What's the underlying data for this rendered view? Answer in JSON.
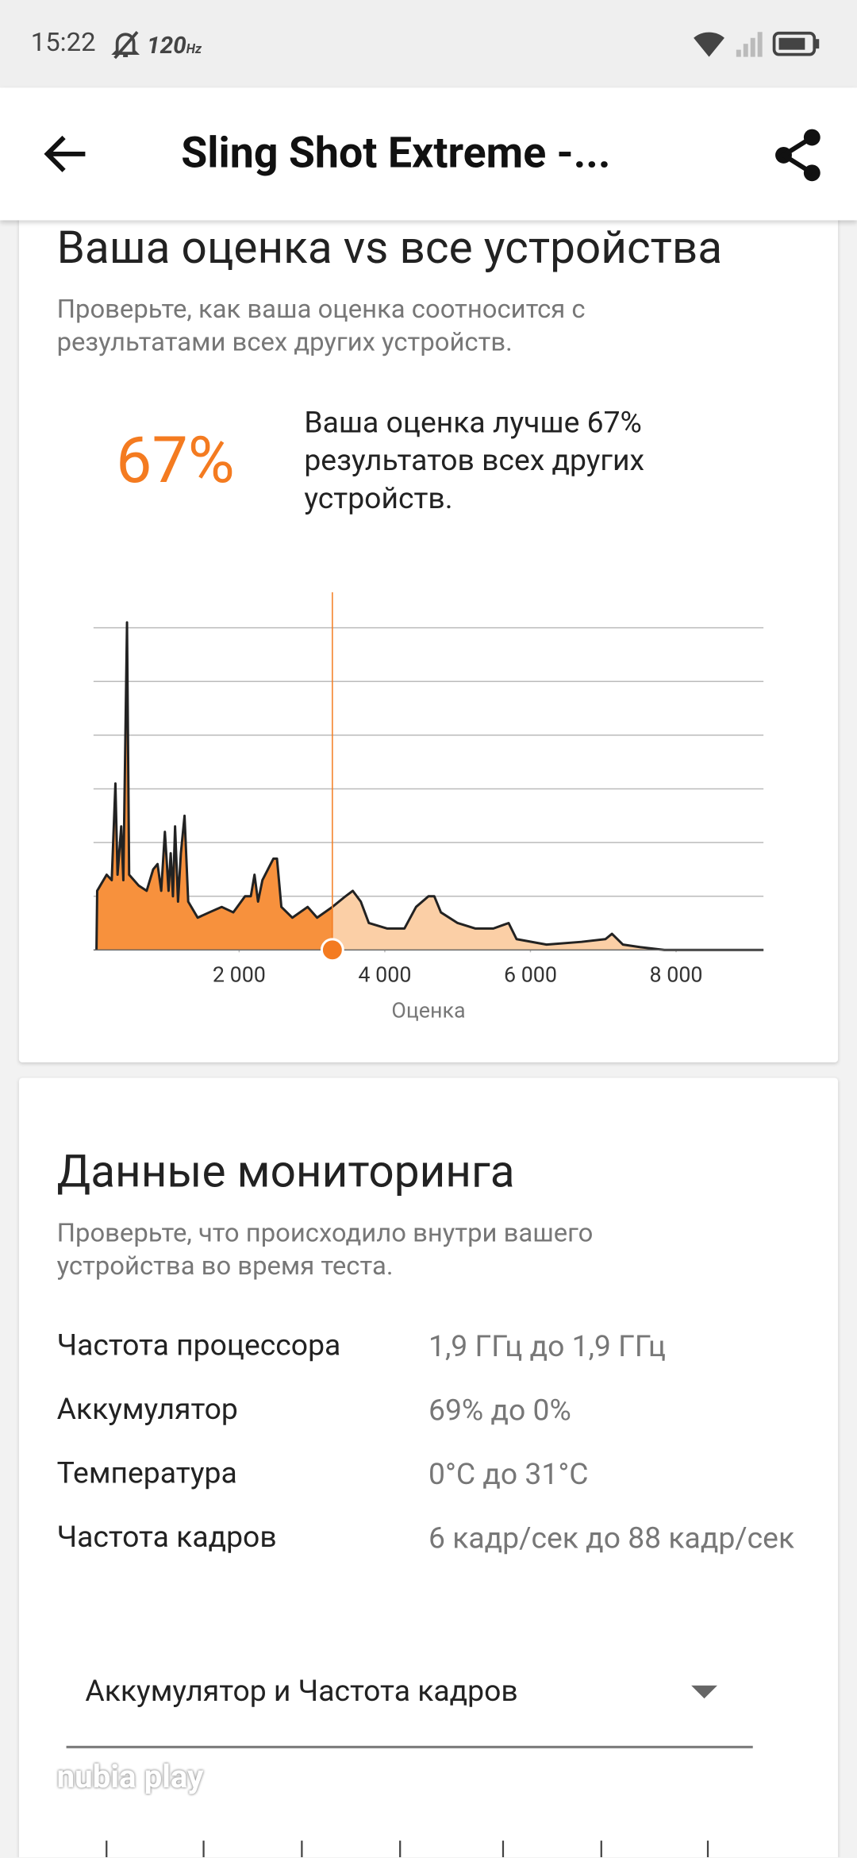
{
  "status_bar": {
    "time": "15:22",
    "refresh": "120",
    "refresh_unit": "Hz"
  },
  "header": {
    "title": "Sling Shot Extreme -..."
  },
  "comparison": {
    "title": "Ваша оценка vs все устройства",
    "subtitle": "Проверьте, как ваша оценка соотносится с результатами всех других устройств.",
    "percent": "67%",
    "summary": "Ваша оценка лучше 67% результатов всех других устройств."
  },
  "chart_data": {
    "type": "area",
    "xlabel": "Оценка",
    "x": [
      40,
      50,
      180,
      250,
      300,
      330,
      380,
      410,
      460,
      490,
      620,
      730,
      820,
      880,
      930,
      980,
      1030,
      1060,
      1090,
      1120,
      1160,
      1200,
      1250,
      1300,
      1430,
      1590,
      1760,
      1920,
      2080,
      2160,
      2210,
      2260,
      2320,
      2470,
      2520,
      2580,
      2730,
      2940,
      3070,
      3280,
      3460,
      3560,
      3670,
      3780,
      4030,
      4270,
      4430,
      4600,
      4680,
      4770,
      5000,
      5240,
      5490,
      5700,
      5810,
      6220,
      6700,
      7030,
      7120,
      7270,
      7510,
      7840,
      9200
    ],
    "values": [
      0,
      1.1,
      1.4,
      1.3,
      3.1,
      1.4,
      2.3,
      1.3,
      6.1,
      1.4,
      1.2,
      1.1,
      1.5,
      1.6,
      1.1,
      2.2,
      1.1,
      1.8,
      1.0,
      2.3,
      0.9,
      1.8,
      2.5,
      0.9,
      0.6,
      0.7,
      0.8,
      0.7,
      1.0,
      1.0,
      1.4,
      0.9,
      1.3,
      1.7,
      1.7,
      0.8,
      0.6,
      0.8,
      0.6,
      0.8,
      1.0,
      1.1,
      0.9,
      0.5,
      0.4,
      0.4,
      0.8,
      1.0,
      1.0,
      0.7,
      0.5,
      0.4,
      0.4,
      0.5,
      0.2,
      0.1,
      0.15,
      0.2,
      0.3,
      0.1,
      0.05,
      0,
      0
    ],
    "score": 3280,
    "color": "#f7913d",
    "color_after": "#fbcfa6",
    "marker_color": "#f47b20",
    "xlim": [
      0,
      9200
    ],
    "ylim": [
      0,
      6
    ],
    "xticks": [
      {
        "value": 2000,
        "label": "2 000"
      },
      {
        "value": 4000,
        "label": "4 000"
      },
      {
        "value": 6000,
        "label": "6 000"
      },
      {
        "value": 8000,
        "label": "8 000"
      }
    ],
    "yticks": [
      1,
      2,
      3,
      4,
      5,
      6
    ],
    "grid": true
  },
  "monitoring": {
    "title": "Данные мониторинга",
    "subtitle": "Проверьте, что происходило внутри вашего устройства во время теста.",
    "rows": [
      [
        "Частота процессора",
        "1,9 ГГц до 1,9 ГГц"
      ],
      [
        "Аккумулятор",
        "69% до 0%"
      ],
      [
        "Температура",
        "0°C до 31°C"
      ],
      [
        "Частота кадров",
        "6 кадр/сек до 88 кадр/сек"
      ]
    ],
    "dropdown": "Аккумулятор и Частота кадров"
  },
  "watermark": "nubia play"
}
